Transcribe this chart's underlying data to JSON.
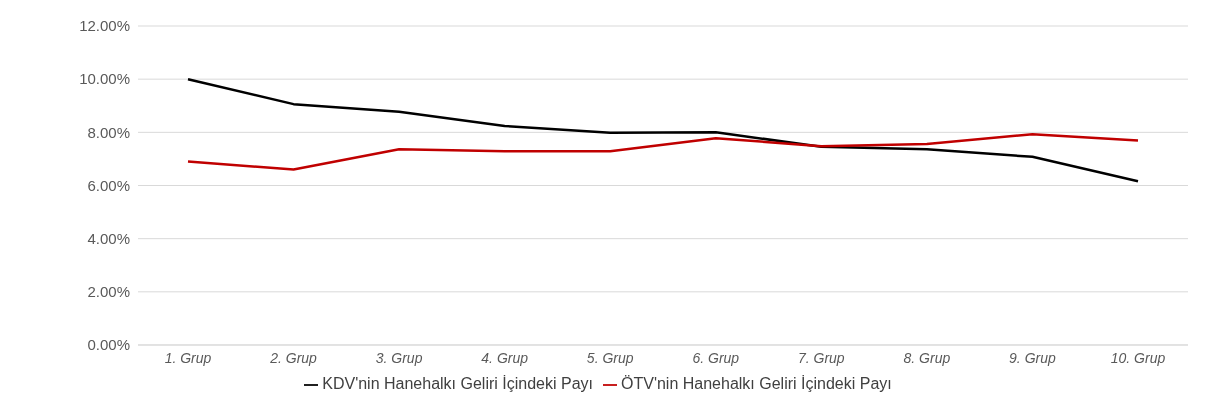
{
  "chart_data": {
    "type": "line",
    "categories": [
      "1. Grup",
      "2. Grup",
      "3. Grup",
      "4. Grup",
      "5. Grup",
      "6. Grup",
      "7. Grup",
      "8. Grup",
      "9. Grup",
      "10. Grup"
    ],
    "series": [
      {
        "name": "KDV'nin Hanehalkı Geliri İçindeki Payı",
        "color": "#000000",
        "values": [
          10.0,
          9.06,
          8.77,
          8.24,
          7.98,
          8.0,
          7.46,
          7.36,
          7.08,
          6.16
        ]
      },
      {
        "name": "ÖTV'nin Hanehalkı Geliri İçindeki Payı",
        "color": "#c00000",
        "values": [
          6.9,
          6.6,
          7.36,
          7.29,
          7.29,
          7.78,
          7.48,
          7.56,
          7.93,
          7.69
        ]
      }
    ],
    "ylim": [
      0,
      12
    ],
    "yticks": [
      {
        "value": 0,
        "label": "0.00%"
      },
      {
        "value": 2,
        "label": "2.00%"
      },
      {
        "value": 4,
        "label": "4.00%"
      },
      {
        "value": 6,
        "label": "6.00%"
      },
      {
        "value": 8,
        "label": "8.00%"
      },
      {
        "value": 10,
        "label": "10.00%"
      },
      {
        "value": 12,
        "label": "12.00%"
      }
    ],
    "grid": "y",
    "legend": "bottom",
    "marker": "none",
    "line_style": "solid"
  }
}
